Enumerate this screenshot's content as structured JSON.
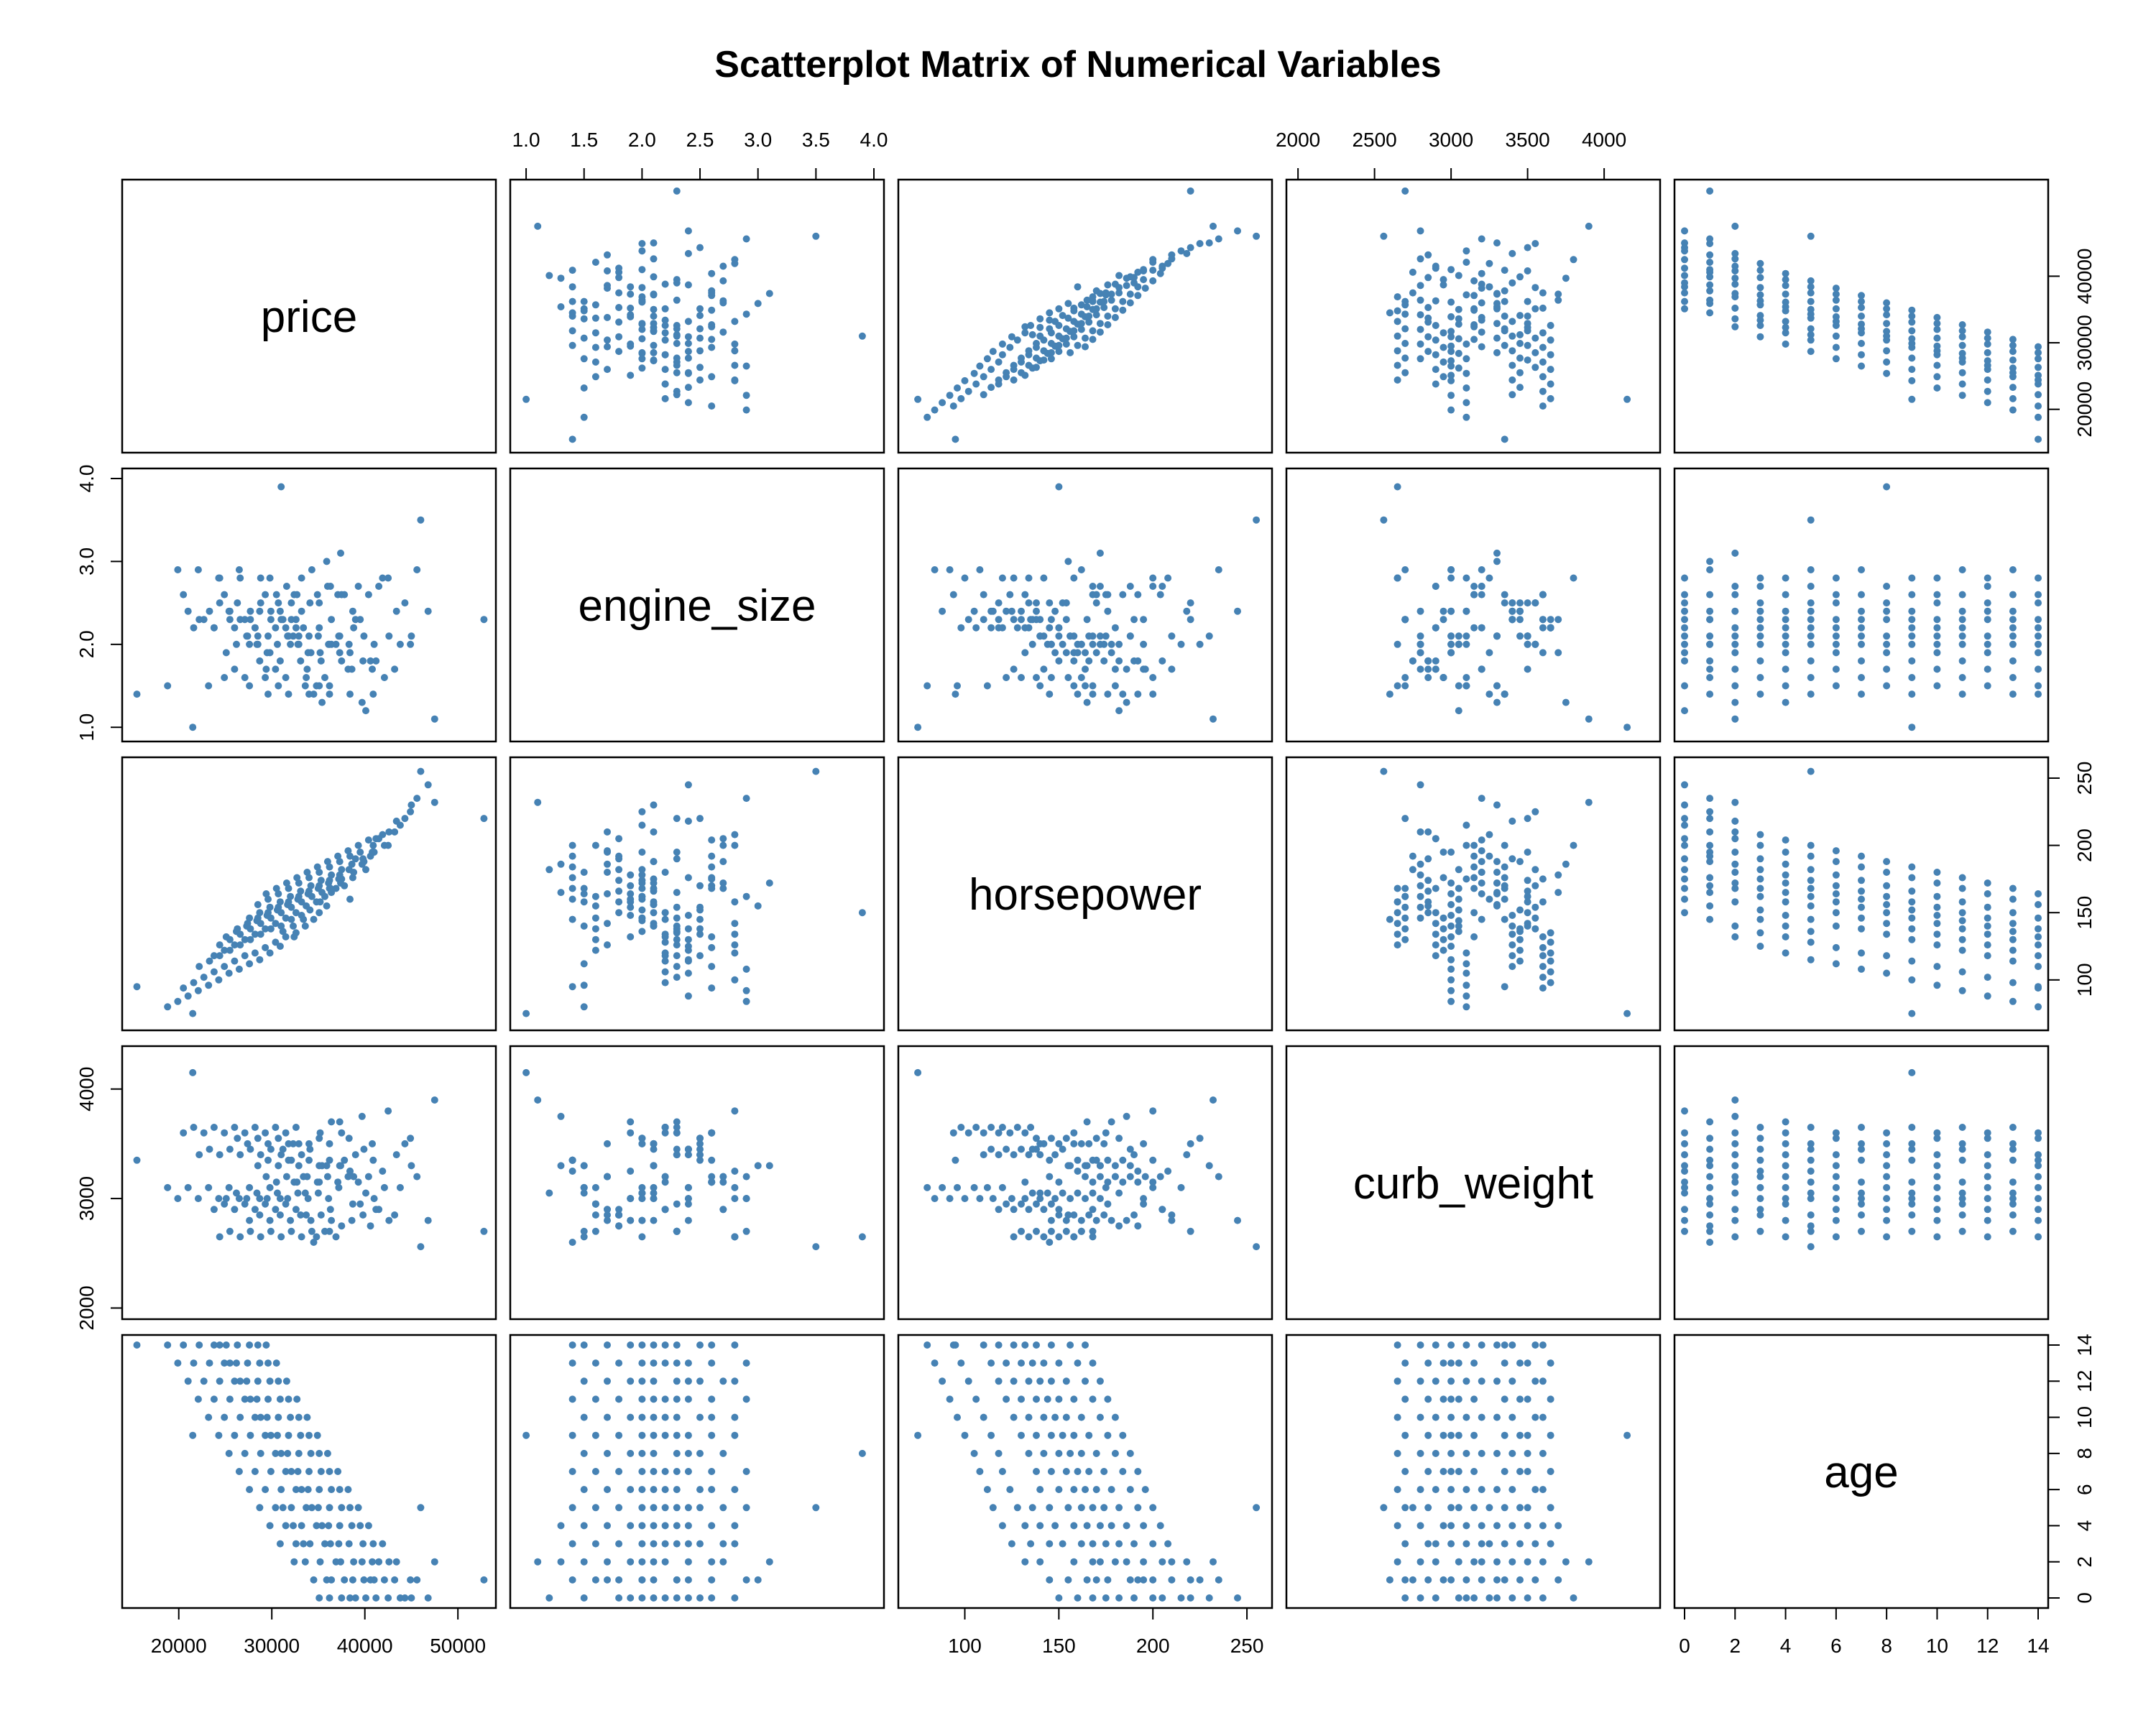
{
  "chart_data": {
    "type": "scatter",
    "subtype": "scatterplot-matrix",
    "title": "Scatterplot Matrix of Numerical Variables",
    "point_color": "#4682B4",
    "variables": [
      {
        "name": "price",
        "range": [
          15000,
          53000
        ],
        "ticks": [
          20000,
          30000,
          40000,
          50000
        ],
        "axis_ticks": [
          20000,
          30000,
          40000
        ],
        "tick_labels": [
          "20000",
          "30000",
          "40000",
          "50000"
        ],
        "axis_tick_labels": [
          "20000",
          "30000",
          "40000"
        ]
      },
      {
        "name": "engine_size",
        "range": [
          0.95,
          4.0
        ],
        "ticks": [
          1.0,
          1.5,
          2.0,
          2.5,
          3.0,
          3.5,
          4.0
        ],
        "tick_labels": [
          "1.0",
          "1.5",
          "2.0",
          "2.5",
          "3.0",
          "3.5",
          "4.0"
        ],
        "left_ticks": [
          1.0,
          2.0,
          3.0,
          4.0
        ],
        "left_tick_labels": [
          "1.0",
          "2.0",
          "3.0",
          "4.0"
        ]
      },
      {
        "name": "horsepower",
        "range": [
          70,
          258
        ],
        "ticks": [
          100,
          150,
          200,
          250
        ],
        "tick_labels": [
          "100",
          "150",
          "200",
          "250"
        ]
      },
      {
        "name": "curb_weight",
        "range": [
          1990,
          4300
        ],
        "ticks": [
          2000,
          2500,
          3000,
          3500,
          4000
        ],
        "tick_labels": [
          "2000",
          "2500",
          "3000",
          "3500",
          "4000"
        ],
        "left_ticks": [
          2000,
          3000,
          4000
        ],
        "left_tick_labels": [
          "2000",
          "3000",
          "4000"
        ]
      },
      {
        "name": "age",
        "range": [
          0,
          14
        ],
        "ticks": [
          0,
          2,
          4,
          6,
          8,
          10,
          12,
          14
        ],
        "tick_labels": [
          "0",
          "2",
          "4",
          "6",
          "8",
          "10",
          "12",
          "14"
        ]
      }
    ],
    "observations": [
      [
        43800,
        2.0,
        215,
        3100,
        0
      ],
      [
        39000,
        2.3,
        190,
        3400,
        0
      ],
      [
        41200,
        1.8,
        205,
        2900,
        0
      ],
      [
        37500,
        2.6,
        175,
        3600,
        0
      ],
      [
        45000,
        2.1,
        230,
        3300,
        0
      ],
      [
        36200,
        1.5,
        168,
        2700,
        0
      ],
      [
        42500,
        2.8,
        200,
        3800,
        0
      ],
      [
        40100,
        1.2,
        182,
        3050,
        0
      ],
      [
        46800,
        2.4,
        245,
        2800,
        0
      ],
      [
        38400,
        1.9,
        160,
        3250,
        0
      ],
      [
        44300,
        2.5,
        220,
        3500,
        0
      ],
      [
        35100,
        2.2,
        150,
        3150,
        0
      ],
      [
        41000,
        2.0,
        195,
        3000,
        1
      ],
      [
        37800,
        2.6,
        170,
        3350,
        1
      ],
      [
        43200,
        1.7,
        210,
        2850,
        1
      ],
      [
        36400,
        2.3,
        165,
        3700,
        1
      ],
      [
        45600,
        2.9,
        235,
        3200,
        1
      ],
      [
        34500,
        1.4,
        145,
        2600,
        1
      ],
      [
        39900,
        2.1,
        188,
        3450,
        1
      ],
      [
        42100,
        1.6,
        200,
        3100,
        1
      ],
      [
        38700,
        2.4,
        176,
        2950,
        1
      ],
      [
        44900,
        2.0,
        225,
        3550,
        1
      ],
      [
        35900,
        3.0,
        155,
        3300,
        1
      ],
      [
        40600,
        1.8,
        192,
        2750,
        1
      ],
      [
        38800,
        2.2,
        180,
        3200,
        2
      ],
      [
        35200,
        1.9,
        158,
        3600,
        2
      ],
      [
        41500,
        2.7,
        205,
        2900,
        2
      ],
      [
        33600,
        1.5,
        140,
        3050,
        2
      ],
      [
        43400,
        2.4,
        218,
        3400,
        2
      ],
      [
        36900,
        2.0,
        168,
        2650,
        2
      ],
      [
        39700,
        1.3,
        186,
        3750,
        2
      ],
      [
        32400,
        2.6,
        132,
        3150,
        2
      ],
      [
        42600,
        2.1,
        210,
        2800,
        2
      ],
      [
        37400,
        3.1,
        172,
        3300,
        2
      ],
      [
        40800,
        1.7,
        195,
        3500,
        2
      ],
      [
        37200,
        2.1,
        175,
        3100,
        3
      ],
      [
        34100,
        2.5,
        152,
        3450,
        3
      ],
      [
        39800,
        1.8,
        190,
        2850,
        3
      ],
      [
        32600,
        2.3,
        135,
        3650,
        3
      ],
      [
        41900,
        2.8,
        208,
        3250,
        3
      ],
      [
        35700,
        1.6,
        162,
        2700,
        3
      ],
      [
        38300,
        2.0,
        182,
        3550,
        3
      ],
      [
        30900,
        2.4,
        125,
        3000,
        3
      ],
      [
        40900,
        1.4,
        200,
        3350,
        3
      ],
      [
        36300,
        2.7,
        168,
        2900,
        3
      ],
      [
        33400,
        2.2,
        145,
        3200,
        3
      ],
      [
        36100,
        2.0,
        172,
        3000,
        4
      ],
      [
        33200,
        2.4,
        148,
        3400,
        4
      ],
      [
        38600,
        1.7,
        186,
        2800,
        4
      ],
      [
        31500,
        2.2,
        132,
        3600,
        4
      ],
      [
        40400,
        2.6,
        204,
        3200,
        4
      ],
      [
        34800,
        1.5,
        158,
        2650,
        4
      ],
      [
        37300,
        1.9,
        178,
        3700,
        4
      ],
      [
        29800,
        2.8,
        120,
        3100,
        4
      ],
      [
        39500,
        2.3,
        195,
        2950,
        4
      ],
      [
        35400,
        1.3,
        165,
        3300,
        4
      ],
      [
        32300,
        2.1,
        140,
        3500,
        4
      ],
      [
        35000,
        2.1,
        168,
        3050,
        5
      ],
      [
        32100,
        2.5,
        145,
        3350,
        5
      ],
      [
        37500,
        1.8,
        182,
        2750,
        5
      ],
      [
        30400,
        2.2,
        128,
        3650,
        5
      ],
      [
        39300,
        2.7,
        200,
        3150,
        5
      ],
      [
        33700,
        1.6,
        155,
        2850,
        5
      ],
      [
        36200,
        2.0,
        174,
        3500,
        5
      ],
      [
        28700,
        2.4,
        115,
        3000,
        5
      ],
      [
        38400,
        1.4,
        192,
        3250,
        5
      ],
      [
        34300,
        2.9,
        162,
        2700,
        5
      ],
      [
        31200,
        2.3,
        136,
        3450,
        5
      ],
      [
        33900,
        1.9,
        164,
        3000,
        6
      ],
      [
        31000,
        2.3,
        140,
        3400,
        6
      ],
      [
        36400,
        2.0,
        178,
        2800,
        6
      ],
      [
        29300,
        2.6,
        124,
        3600,
        6
      ],
      [
        38200,
        1.7,
        196,
        3200,
        6
      ],
      [
        32600,
        2.2,
        150,
        2900,
        6
      ],
      [
        35100,
        2.5,
        170,
        3550,
        6
      ],
      [
        27600,
        1.5,
        112,
        3100,
        6
      ],
      [
        37300,
        2.1,
        188,
        3300,
        6
      ],
      [
        33200,
        2.8,
        158,
        2650,
        6
      ],
      [
        32800,
        2.0,
        160,
        3050,
        7
      ],
      [
        29900,
        2.4,
        138,
        3450,
        7
      ],
      [
        35300,
        1.8,
        174,
        2850,
        7
      ],
      [
        28200,
        2.2,
        120,
        3650,
        7
      ],
      [
        37100,
        2.6,
        192,
        3150,
        7
      ],
      [
        31500,
        1.6,
        146,
        2950,
        7
      ],
      [
        34000,
        2.1,
        166,
        3500,
        7
      ],
      [
        26500,
        2.9,
        108,
        3000,
        7
      ],
      [
        36200,
        1.4,
        184,
        3350,
        7
      ],
      [
        32100,
        2.3,
        154,
        2700,
        7
      ],
      [
        31700,
        2.1,
        156,
        3000,
        8
      ],
      [
        28800,
        2.5,
        134,
        3400,
        8
      ],
      [
        34200,
        1.9,
        170,
        2800,
        8
      ],
      [
        27100,
        2.3,
        118,
        3600,
        8
      ],
      [
        36000,
        2.7,
        188,
        3200,
        8
      ],
      [
        30400,
        1.7,
        142,
        2900,
        8
      ],
      [
        32900,
        2.0,
        162,
        3500,
        8
      ],
      [
        25400,
        2.4,
        105,
        3100,
        8
      ],
      [
        35100,
        1.5,
        180,
        3300,
        8
      ],
      [
        31000,
        3.9,
        150,
        2650,
        8
      ],
      [
        30600,
        2.0,
        152,
        3050,
        9
      ],
      [
        27700,
        2.4,
        130,
        3450,
        9
      ],
      [
        33100,
        1.8,
        166,
        2850,
        9
      ],
      [
        26000,
        2.2,
        114,
        3650,
        9
      ],
      [
        34900,
        2.6,
        184,
        3150,
        9
      ],
      [
        29300,
        1.6,
        138,
        2950,
        9
      ],
      [
        31800,
        2.1,
        158,
        3500,
        9
      ],
      [
        24300,
        2.8,
        100,
        3000,
        9
      ],
      [
        34000,
        1.4,
        176,
        3350,
        9
      ],
      [
        29900,
        2.3,
        146,
        2700,
        9
      ],
      [
        29500,
        1.9,
        148,
        3000,
        10
      ],
      [
        26600,
        2.3,
        126,
        3400,
        10
      ],
      [
        32000,
        2.0,
        162,
        2800,
        10
      ],
      [
        24900,
        2.6,
        110,
        3600,
        10
      ],
      [
        33800,
        1.7,
        180,
        3200,
        10
      ],
      [
        28200,
        2.2,
        134,
        2900,
        10
      ],
      [
        30700,
        2.5,
        154,
        3550,
        10
      ],
      [
        23200,
        1.5,
        96,
        3100,
        10
      ],
      [
        32900,
        2.1,
        172,
        3300,
        10
      ],
      [
        28800,
        2.8,
        142,
        2650,
        10
      ],
      [
        28400,
        2.0,
        144,
        3050,
        11
      ],
      [
        25500,
        2.4,
        122,
        3450,
        11
      ],
      [
        30900,
        1.8,
        158,
        2850,
        11
      ],
      [
        23800,
        2.2,
        106,
        3650,
        11
      ],
      [
        32700,
        2.6,
        176,
        3150,
        11
      ],
      [
        27100,
        1.6,
        130,
        2950,
        11
      ],
      [
        29600,
        2.1,
        150,
        3500,
        11
      ],
      [
        22100,
        2.9,
        92,
        3000,
        11
      ],
      [
        31800,
        1.4,
        168,
        3350,
        11
      ],
      [
        27700,
        2.3,
        138,
        2700,
        11
      ],
      [
        27300,
        2.1,
        140,
        3000,
        12
      ],
      [
        24400,
        2.5,
        118,
        3400,
        12
      ],
      [
        29800,
        1.9,
        154,
        2800,
        12
      ],
      [
        22700,
        2.3,
        102,
        3600,
        12
      ],
      [
        31600,
        2.7,
        172,
        3200,
        12
      ],
      [
        26000,
        1.7,
        126,
        2900,
        12
      ],
      [
        28500,
        2.0,
        146,
        3550,
        12
      ],
      [
        21000,
        2.4,
        88,
        3100,
        12
      ],
      [
        30700,
        1.5,
        164,
        3300,
        12
      ],
      [
        26600,
        2.8,
        134,
        2650,
        12
      ],
      [
        26200,
        2.0,
        136,
        3050,
        13
      ],
      [
        23300,
        2.4,
        114,
        3450,
        13
      ],
      [
        28700,
        1.8,
        150,
        2850,
        13
      ],
      [
        21600,
        2.2,
        98,
        3650,
        13
      ],
      [
        30500,
        2.6,
        168,
        3150,
        13
      ],
      [
        24900,
        1.6,
        122,
        2950,
        13
      ],
      [
        27400,
        2.1,
        142,
        3500,
        13
      ],
      [
        19900,
        2.9,
        84,
        3000,
        13
      ],
      [
        29600,
        1.4,
        160,
        3350,
        13
      ],
      [
        25500,
        2.3,
        130,
        2700,
        13
      ],
      [
        25100,
        1.9,
        132,
        3000,
        14
      ],
      [
        22200,
        2.3,
        110,
        3400,
        14
      ],
      [
        27600,
        2.0,
        146,
        2800,
        14
      ],
      [
        20500,
        2.6,
        94,
        3600,
        14
      ],
      [
        29400,
        1.7,
        164,
        3200,
        14
      ],
      [
        23800,
        2.2,
        118,
        2900,
        14
      ],
      [
        26300,
        2.5,
        138,
        3550,
        14
      ],
      [
        18800,
        1.5,
        80,
        3100,
        14
      ],
      [
        28500,
        2.1,
        156,
        3300,
        14
      ],
      [
        24400,
        2.8,
        126,
        2650,
        14
      ],
      [
        52800,
        2.3,
        220,
        2700,
        1
      ],
      [
        15500,
        1.4,
        95,
        3350,
        14
      ],
      [
        46000,
        3.5,
        255,
        2560,
        5
      ],
      [
        47500,
        1.1,
        232,
        3900,
        2
      ],
      [
        21500,
        1.0,
        75,
        4150,
        9
      ]
    ]
  }
}
